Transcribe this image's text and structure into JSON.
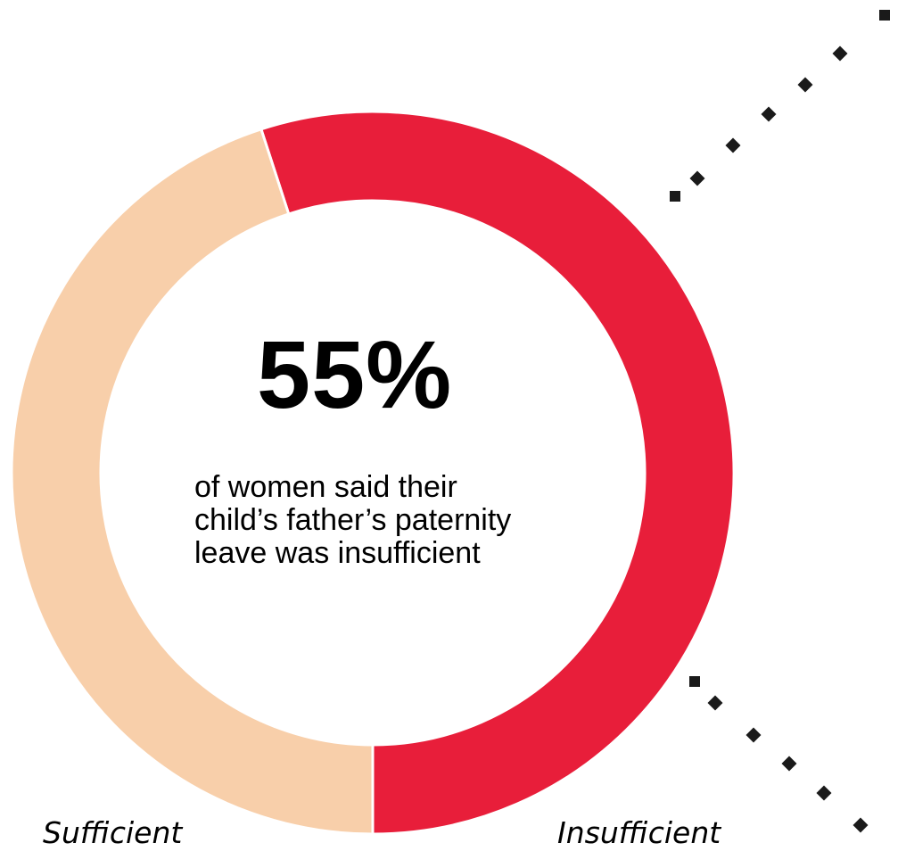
{
  "chart_data": {
    "type": "pie",
    "style": "donut",
    "slices": [
      {
        "label": "Insufficient",
        "value": 55,
        "color": "#E81E3A"
      },
      {
        "label": "Sufficient",
        "value": 45,
        "color": "#F8CFAA"
      }
    ],
    "center_value": "55%",
    "center_caption": [
      "of women said their",
      "child’s father’s paternity",
      "leave was insufficient"
    ],
    "decoration_color": "#1a1a1a"
  }
}
